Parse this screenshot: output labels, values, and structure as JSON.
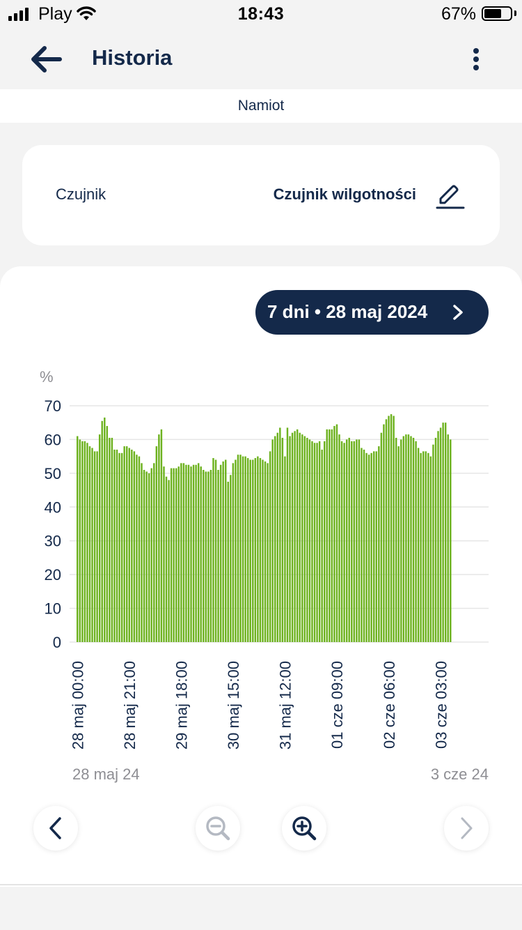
{
  "status_bar": {
    "carrier": "Play",
    "time": "18:43",
    "battery_percent": "67%",
    "battery_level": 0.67
  },
  "header": {
    "title": "Historia"
  },
  "subheader": {
    "location": "Namiot"
  },
  "sensor_card": {
    "label": "Czujnik",
    "value": "Czujnik wilgotności"
  },
  "range_pill": {
    "label": "7 dni • 28 maj 2024"
  },
  "date_range": {
    "start": "28 maj 24",
    "end": "3 cze 24"
  },
  "colors": {
    "primary": "#14294a",
    "bar": "#6db21f",
    "grid": "#e6e6e6",
    "muted": "#8e8e93",
    "disabled": "#b4b9c2"
  },
  "chart_data": {
    "type": "bar",
    "ylabel": "%",
    "ylim": [
      0,
      70
    ],
    "yticks": [
      0,
      10,
      20,
      30,
      40,
      50,
      60,
      70
    ],
    "xtick_labels": [
      "28 maj 00:00",
      "28 maj 21:00",
      "29 maj 18:00",
      "30 maj 15:00",
      "31 maj 12:00",
      "01 cze 09:00",
      "02 cze 06:00",
      "03 cze 03:00"
    ],
    "xtick_hours": [
      0,
      21,
      42,
      63,
      84,
      105,
      126,
      147
    ],
    "bar_interval_hours": 1,
    "grid": true,
    "series": [
      {
        "values": [
          61,
          60,
          59.5,
          59.5,
          59,
          58,
          57.5,
          56.5,
          56.5,
          61.5,
          65.5,
          66.5,
          64,
          60.5,
          60.5,
          57,
          57,
          56,
          56,
          58,
          58,
          57.5,
          57,
          56.5,
          55.5,
          55,
          53,
          51,
          50.5,
          50,
          51.5,
          53,
          58,
          61.5,
          63,
          52,
          49,
          48,
          51.5,
          51.5,
          51.5,
          52,
          53,
          53,
          52.5,
          52.5,
          52,
          52.5,
          52.5,
          53,
          52,
          51,
          50.5,
          50.5,
          51,
          54.5,
          54,
          51,
          52.5,
          53.5,
          54,
          47.5,
          49.5,
          53,
          54,
          55.5,
          55.5,
          55,
          55,
          54.5,
          54,
          54,
          54.5,
          55,
          54.5,
          54,
          53.5,
          53,
          56.5,
          60,
          61,
          62,
          63.5,
          60.5,
          55,
          63.5,
          61,
          62,
          62.5,
          63,
          62,
          61.5,
          61,
          60.5,
          60,
          59.5,
          59,
          59,
          59.5,
          57,
          59.5,
          63,
          63,
          63,
          64,
          64.5,
          61.5,
          59.5,
          59,
          60,
          60.5,
          59.5,
          59.5,
          60,
          60,
          57.5,
          57,
          56,
          55.5,
          56,
          56.5,
          56.5,
          58,
          62,
          64.5,
          66,
          67,
          67.5,
          67,
          60.5,
          58,
          60,
          61,
          61.5,
          61.5,
          61,
          60.5,
          59.5,
          57.5,
          56,
          56.5,
          56.5,
          56,
          55,
          58.5,
          60.5,
          62.5,
          63.5,
          65,
          65,
          61.5,
          60
        ]
      }
    ]
  },
  "controls": {
    "prev": {
      "icon": "chevron-left-icon",
      "enabled": true
    },
    "zoom_out": {
      "icon": "zoom-out-icon",
      "enabled": false
    },
    "zoom_in": {
      "icon": "zoom-in-icon",
      "enabled": true
    },
    "next": {
      "icon": "chevron-right-icon",
      "enabled": false
    }
  }
}
